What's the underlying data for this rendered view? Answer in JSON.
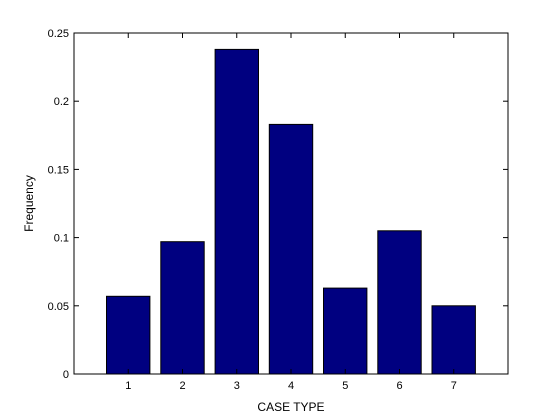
{
  "chart_data": {
    "type": "bar",
    "categories": [
      "1",
      "2",
      "3",
      "4",
      "5",
      "6",
      "7"
    ],
    "values": [
      0.057,
      0.097,
      0.238,
      0.183,
      0.063,
      0.105,
      0.05
    ],
    "xlabel": "CASE TYPE",
    "ylabel": "Frequency",
    "ylim": [
      0,
      0.25
    ],
    "xlim": [
      0,
      8
    ],
    "yticks": [
      0,
      0.05,
      0.1,
      0.15,
      0.2,
      0.25
    ],
    "ytick_labels": [
      "0",
      "0.05",
      "0.1",
      "0.15",
      "0.2",
      "0.25"
    ],
    "grid": false,
    "legend": "none",
    "colors": {
      "bar_fill": "#000080",
      "bar_edge": "#000000",
      "axes": "#000000",
      "background": "#ffffff"
    }
  }
}
